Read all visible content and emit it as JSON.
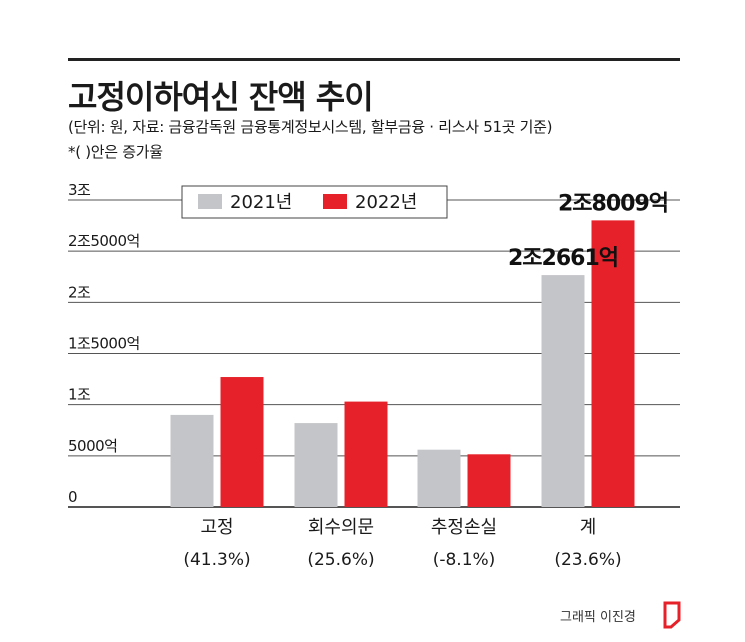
{
  "header": {
    "title": "고정이하여신 잔액 추이",
    "subtitle": "(단위: 원, 자료: 금융감독원 금융통계정보시스템, 할부금융 · 리스사 51곳 기준)",
    "note": "*( )안은 증가율"
  },
  "credit": "그래픽 이진경",
  "colors": {
    "series_2021": "#c4c5c8",
    "series_2022": "#e62129",
    "grid": "#555555",
    "text": "#1a1a1a"
  },
  "chart_data": {
    "type": "bar",
    "title": "고정이하여신 잔액 추이",
    "categories": [
      "고정",
      "회수의문",
      "추정손실",
      "계"
    ],
    "category_rates": [
      "(41.3%)",
      "(25.6%)",
      "(-8.1%)",
      "(23.6%)"
    ],
    "series": [
      {
        "name": "2021년",
        "values": [
          9000,
          8200,
          5600,
          22661
        ]
      },
      {
        "name": "2022년",
        "values": [
          12700,
          10300,
          5150,
          28009
        ]
      }
    ],
    "value_unit": "억",
    "ylim": [
      0,
      30000
    ],
    "yticks": [
      0,
      5000,
      10000,
      15000,
      20000,
      25000,
      30000
    ],
    "ytick_labels": [
      "0",
      "5000억",
      "1조",
      "1조5000억",
      "2조",
      "2조5000억",
      "3조"
    ],
    "data_labels": [
      {
        "category": "계",
        "series": "2021년",
        "text": "2조2661억"
      },
      {
        "category": "계",
        "series": "2022년",
        "text": "2조8009억"
      }
    ],
    "grid": true,
    "legend_position": "top-left"
  }
}
